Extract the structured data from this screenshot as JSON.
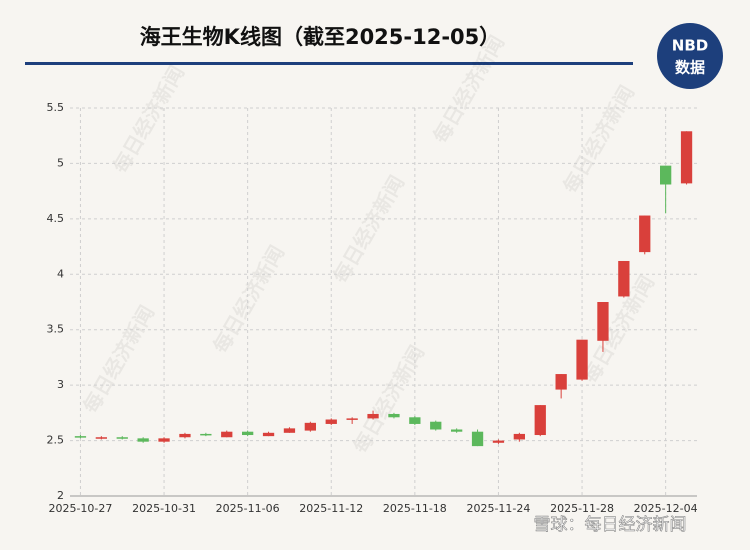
{
  "chart_data": {
    "type": "candlestick",
    "title": "海王生物K线图（截至2025-12-05）",
    "logo": [
      "NBD",
      "数据"
    ],
    "watermark": "每日经济新闻",
    "footer": "雪球：每日经济新闻",
    "x": [
      "2025-10-27",
      null,
      null,
      null,
      "2025-10-31",
      null,
      null,
      null,
      "2025-11-06",
      null,
      null,
      null,
      "2025-11-12",
      null,
      null,
      null,
      "2025-11-18",
      null,
      null,
      null,
      "2025-11-24",
      null,
      null,
      null,
      "2025-11-28",
      null,
      null,
      null,
      "2025-12-04",
      null
    ],
    "open": [
      2.54,
      2.52,
      2.53,
      2.52,
      2.49,
      2.53,
      2.56,
      2.53,
      2.58,
      2.54,
      2.57,
      2.59,
      2.65,
      2.69,
      2.7,
      2.74,
      2.71,
      2.67,
      2.6,
      2.58,
      2.48,
      2.51,
      2.55,
      2.96,
      3.05,
      3.4,
      3.8,
      4.2,
      4.98,
      4.82
    ],
    "close": [
      2.53,
      2.53,
      2.52,
      2.49,
      2.52,
      2.56,
      2.55,
      2.58,
      2.55,
      2.57,
      2.61,
      2.66,
      2.69,
      2.7,
      2.74,
      2.71,
      2.65,
      2.6,
      2.58,
      2.45,
      2.5,
      2.56,
      2.82,
      3.1,
      3.41,
      3.75,
      4.12,
      4.53,
      4.81,
      5.29
    ],
    "high": [
      2.55,
      2.54,
      2.54,
      2.53,
      2.53,
      2.57,
      2.57,
      2.59,
      2.59,
      2.58,
      2.62,
      2.67,
      2.7,
      2.71,
      2.77,
      2.75,
      2.72,
      2.68,
      2.61,
      2.6,
      2.51,
      2.57,
      2.82,
      3.1,
      3.41,
      3.75,
      4.12,
      4.53,
      4.98,
      5.29
    ],
    "low": [
      2.52,
      2.51,
      2.51,
      2.48,
      2.48,
      2.52,
      2.54,
      2.53,
      2.54,
      2.54,
      2.57,
      2.58,
      2.64,
      2.65,
      2.69,
      2.7,
      2.64,
      2.59,
      2.57,
      2.45,
      2.47,
      2.49,
      2.54,
      2.88,
      3.04,
      3.3,
      3.79,
      4.18,
      4.55,
      4.81
    ],
    "up_color": "#d9403b",
    "down_color": "#5cb85c",
    "ylim": [
      2,
      5.5
    ],
    "yticks": [
      2,
      2.5,
      3,
      3.5,
      4,
      4.5,
      5,
      5.5
    ],
    "grid": true
  }
}
